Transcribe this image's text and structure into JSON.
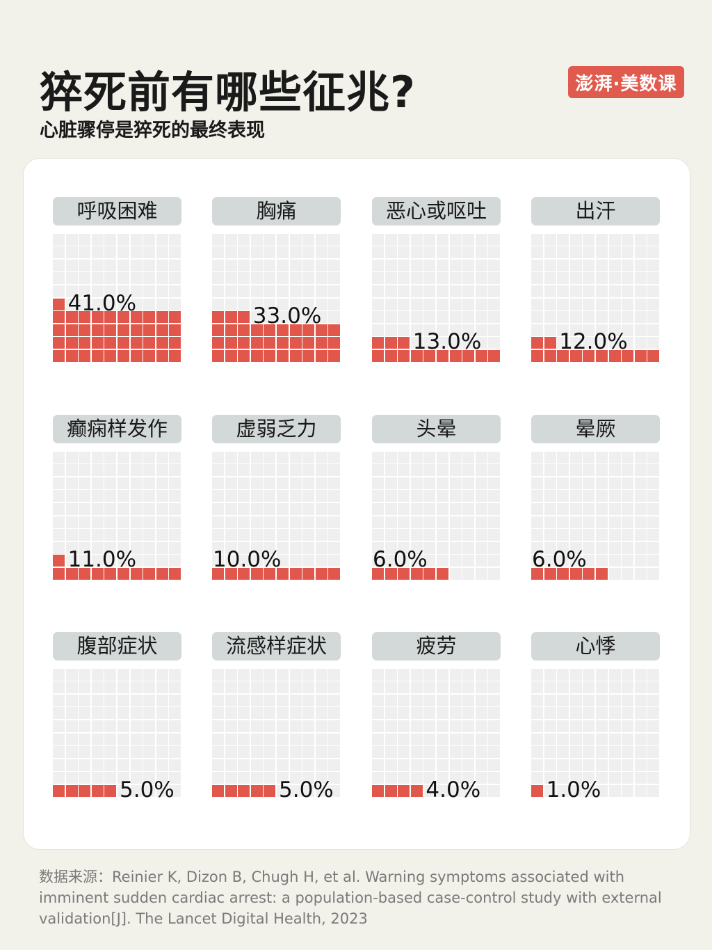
{
  "header": {
    "title": "猝死前有哪些征兆?",
    "subtitle": "心脏骤停是猝死的最终表现",
    "logo": "澎湃·美数课"
  },
  "chart_data": {
    "type": "waffle",
    "unit": "%",
    "grid": "10x10",
    "colors": {
      "filled": "#e2574c",
      "empty": "#efefef",
      "label_bg": "#d3d9d8"
    },
    "categories": [
      "呼吸困难",
      "胸痛",
      "恶心或呕吐",
      "出汗",
      "癫痫样发作",
      "虚弱乏力",
      "头晕",
      "晕厥",
      "腹部症状",
      "流感样症状",
      "疲劳",
      "心悸"
    ],
    "values": [
      41.0,
      33.0,
      13.0,
      12.0,
      11.0,
      10.0,
      6.0,
      6.0,
      5.0,
      5.0,
      4.0,
      1.0
    ],
    "labels": [
      "41.0%",
      "33.0%",
      "13.0%",
      "12.0%",
      "11.0%",
      "10.0%",
      "6.0%",
      "6.0%",
      "5.0%",
      "5.0%",
      "4.0%",
      "1.0%"
    ]
  },
  "footer": {
    "source": "数据来源：Reinier K, Dizon B, Chugh H, et al. Warning symptoms associated with imminent sudden cardiac arrest: a population-based case-control study with external validation[J]. The Lancet Digital Health, 2023"
  }
}
